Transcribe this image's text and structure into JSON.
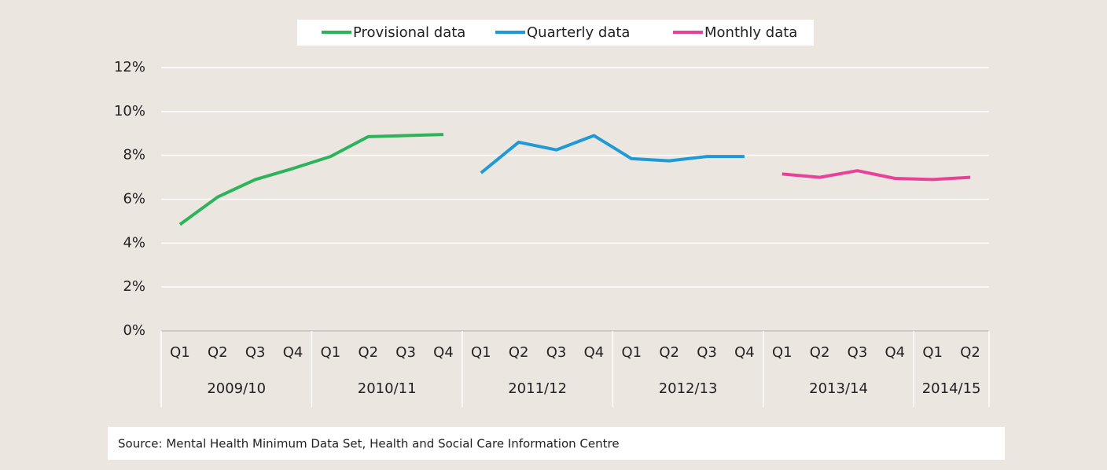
{
  "chart_data": {
    "type": "line",
    "legend": "top",
    "grid": true,
    "categories": [
      "Q1",
      "Q2",
      "Q3",
      "Q4",
      "Q1",
      "Q2",
      "Q3",
      "Q4",
      "Q1",
      "Q2",
      "Q3",
      "Q4",
      "Q1",
      "Q2",
      "Q3",
      "Q4",
      "Q1",
      "Q2",
      "Q3",
      "Q4",
      "Q1",
      "Q2"
    ],
    "category_groups": [
      {
        "label": "2009/10",
        "size": 4
      },
      {
        "label": "2010/11",
        "size": 4
      },
      {
        "label": "2011/12",
        "size": 4
      },
      {
        "label": "2012/13",
        "size": 4
      },
      {
        "label": "2013/14",
        "size": 4
      },
      {
        "label": "2014/15",
        "size": 2
      }
    ],
    "series": [
      {
        "name": "Provisional data",
        "color": "#2db35a",
        "values": [
          4.85,
          6.1,
          6.9,
          7.4,
          7.95,
          8.85,
          8.9,
          8.95,
          null,
          null,
          null,
          null,
          null,
          null,
          null,
          null,
          null,
          null,
          null,
          null,
          null,
          null
        ]
      },
      {
        "name": "Quarterly data",
        "color": "#1f9ad6",
        "values": [
          null,
          null,
          null,
          null,
          null,
          null,
          null,
          null,
          7.2,
          8.6,
          8.25,
          8.9,
          7.85,
          7.75,
          7.95,
          7.95,
          null,
          null,
          null,
          null,
          null,
          null
        ]
      },
      {
        "name": "Monthly data",
        "color": "#e8419a",
        "values": [
          null,
          null,
          null,
          null,
          null,
          null,
          null,
          null,
          null,
          null,
          null,
          null,
          null,
          null,
          null,
          null,
          7.15,
          7.0,
          7.3,
          6.95,
          6.9,
          7.0
        ]
      }
    ],
    "ylim": [
      0,
      12
    ],
    "yticks": [
      {
        "value": 0,
        "label": "0%"
      },
      {
        "value": 2,
        "label": "2%"
      },
      {
        "value": 4,
        "label": "4%"
      },
      {
        "value": 6,
        "label": "6%"
      },
      {
        "value": 8,
        "label": "8%"
      },
      {
        "value": 10,
        "label": "10%"
      },
      {
        "value": 12,
        "label": "12%"
      }
    ],
    "source": "Source: Mental Health Minimum Data Set, Health and Social Care Information Centre"
  }
}
